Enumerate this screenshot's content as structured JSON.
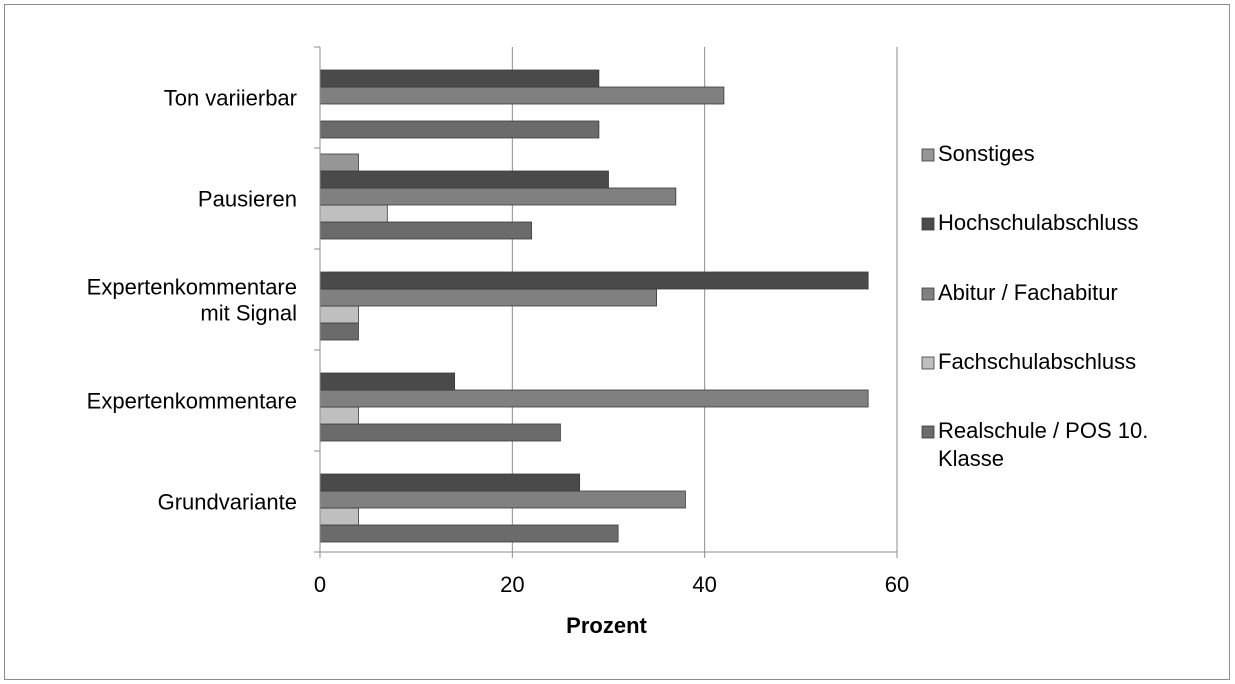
{
  "chart_data": {
    "type": "bar",
    "orientation": "horizontal",
    "categories": [
      "Grundvariante",
      "Expertenkommentare",
      "Expertenkommentare mit Signal",
      "Pausieren",
      "Ton variierbar"
    ],
    "category_lines": [
      [
        "Grundvariante"
      ],
      [
        "Expertenkommentare"
      ],
      [
        "Expertenkommentare",
        "mit Signal"
      ],
      [
        "Pausieren"
      ],
      [
        "Ton variierbar"
      ]
    ],
    "series": [
      {
        "name": "Realschule / POS 10. Klasse",
        "legend_lines": [
          "Realschule / POS 10.",
          "Klasse"
        ],
        "color": "#6b6b6b",
        "values": [
          31,
          25,
          4,
          22,
          29
        ]
      },
      {
        "name": "Fachschulabschluss",
        "legend_lines": [
          "Fachschulabschluss"
        ],
        "color": "#bfbfbf",
        "values": [
          4,
          4,
          4,
          7,
          0
        ]
      },
      {
        "name": "Abitur / Fachabitur",
        "legend_lines": [
          "Abitur / Fachabitur"
        ],
        "color": "#808080",
        "values": [
          38,
          57,
          35,
          37,
          42
        ]
      },
      {
        "name": "Hochschulabschluss",
        "legend_lines": [
          "Hochschulabschluss"
        ],
        "color": "#4a4a4a",
        "values": [
          27,
          14,
          57,
          30,
          29
        ]
      },
      {
        "name": "Sonstiges",
        "legend_lines": [
          "Sonstiges"
        ],
        "color": "#969696",
        "values": [
          0,
          0,
          0,
          4,
          0
        ]
      }
    ],
    "legend_order": [
      "Sonstiges",
      "Hochschulabschluss",
      "Abitur / Fachabitur",
      "Fachschulabschluss",
      "Realschule / POS 10. Klasse"
    ],
    "xlabel": "Prozent",
    "ylabel": "",
    "xlim": [
      0,
      60
    ],
    "xticks": [
      0,
      20,
      40,
      60
    ],
    "grid": "vertical",
    "legend_position": "right"
  }
}
